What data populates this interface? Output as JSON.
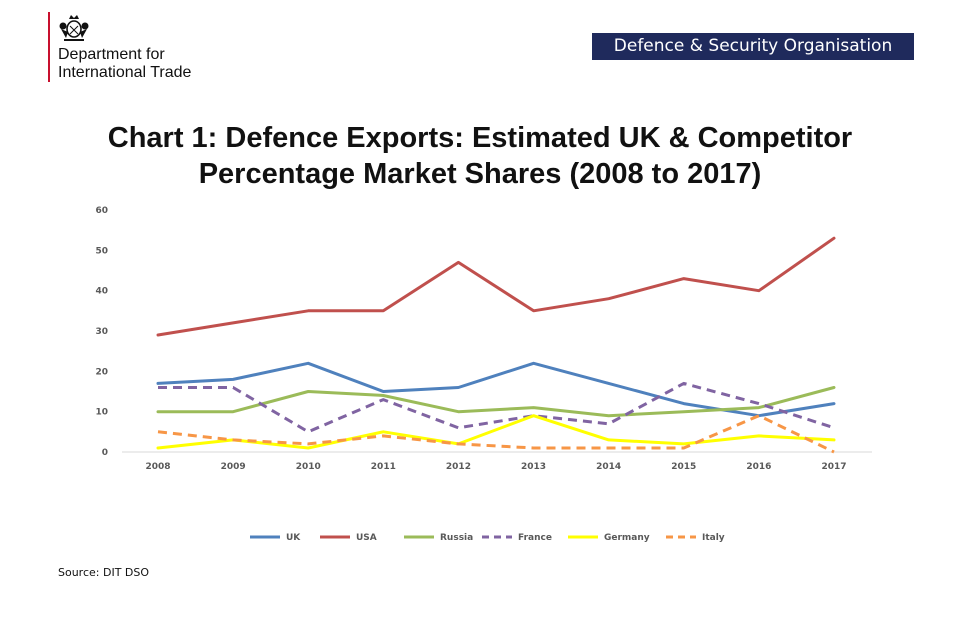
{
  "header": {
    "department_line1": "Department for",
    "department_line2": "International Trade",
    "organisation_badge": "Defence & Security Organisation",
    "brand_colors": {
      "dit_red": "#c8102e",
      "dso_navy": "#1f2a5c"
    }
  },
  "chart_data": {
    "type": "line",
    "title_line1": "Chart 1: Defence Exports: Estimated UK & Competitor",
    "title_line2": "Percentage Market Shares (2008 to 2017)",
    "xlabel": "",
    "ylabel": "",
    "categories": [
      "2008",
      "2009",
      "2010",
      "2011",
      "2012",
      "2013",
      "2014",
      "2015",
      "2016",
      "2017"
    ],
    "ylim": [
      0,
      60
    ],
    "yticks": [
      0,
      10,
      20,
      30,
      40,
      50,
      60
    ],
    "grid": false,
    "legend_position": "bottom",
    "series": [
      {
        "name": "UK",
        "color": "#4f81bd",
        "dashed": false,
        "values": [
          17,
          18,
          22,
          15,
          16,
          22,
          17,
          12,
          9,
          12
        ]
      },
      {
        "name": "USA",
        "color": "#c0504d",
        "dashed": false,
        "values": [
          29,
          32,
          35,
          35,
          47,
          35,
          38,
          43,
          40,
          53
        ]
      },
      {
        "name": "Russia",
        "color": "#9bbb59",
        "dashed": false,
        "values": [
          10,
          10,
          15,
          14,
          10,
          11,
          9,
          10,
          11,
          16
        ]
      },
      {
        "name": "France",
        "color": "#8064a2",
        "dashed": true,
        "values": [
          16,
          16,
          5,
          13,
          6,
          9,
          7,
          17,
          12,
          6
        ]
      },
      {
        "name": "Germany",
        "color": "#ffff00",
        "dashed": false,
        "values": [
          1,
          3,
          1,
          5,
          2,
          9,
          3,
          2,
          4,
          3
        ]
      },
      {
        "name": "Italy",
        "color": "#f79646",
        "dashed": true,
        "values": [
          5,
          3,
          2,
          4,
          2,
          1,
          1,
          1,
          9,
          0
        ]
      }
    ]
  },
  "footer": {
    "source": "Source: DIT  DSO"
  }
}
